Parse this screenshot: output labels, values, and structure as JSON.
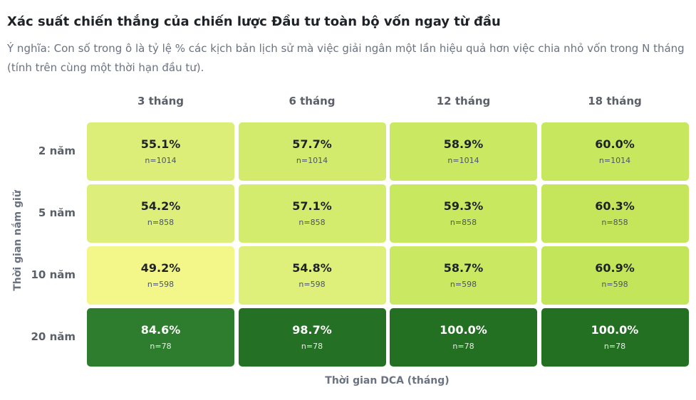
{
  "title": "Xác suất chiến thắng của chiến lược Đầu tư toàn bộ vốn ngay từ đầu",
  "subtitle": "Ý nghĩa: Con số trong ô là tỷ lệ % các kịch bản lịch sử mà việc giải ngân một lần hiệu quả hơn việc chia nhỏ vốn trong N tháng (tính trên cùng một thời hạn đầu tư).",
  "chart_data": {
    "type": "heatmap",
    "title": "Xác suất chiến thắng của chiến lược Đầu tư toàn bộ vốn ngay từ đầu",
    "xlabel": "Thời gian DCA (tháng)",
    "ylabel": "Thời gian nắm giữ",
    "columns": [
      "3 tháng",
      "6 tháng",
      "12 tháng",
      "18 tháng"
    ],
    "rows": [
      "2 năm",
      "5 năm",
      "10 năm",
      "20 năm"
    ],
    "values": [
      [
        55.1,
        57.7,
        58.9,
        60.0
      ],
      [
        54.2,
        57.1,
        59.3,
        60.3
      ],
      [
        49.2,
        54.8,
        58.7,
        60.9
      ],
      [
        84.6,
        98.7,
        100.0,
        100.0
      ]
    ],
    "labels": [
      [
        "55.1%",
        "57.7%",
        "58.9%",
        "60.0%"
      ],
      [
        "54.2%",
        "57.1%",
        "59.3%",
        "60.3%"
      ],
      [
        "49.2%",
        "54.8%",
        "58.7%",
        "60.9%"
      ],
      [
        "84.6%",
        "98.7%",
        "100.0%",
        "100.0%"
      ]
    ],
    "counts": [
      [
        "n=1014",
        "n=1014",
        "n=1014",
        "n=1014"
      ],
      [
        "n=858",
        "n=858",
        "n=858",
        "n=858"
      ],
      [
        "n=598",
        "n=598",
        "n=598",
        "n=598"
      ],
      [
        "n=78",
        "n=78",
        "n=78",
        "n=78"
      ]
    ],
    "colors": [
      [
        "#dcee78",
        "#d2eb6c",
        "#cae862",
        "#c7e75e"
      ],
      [
        "#ddef7a",
        "#d4ec6e",
        "#c8e85f",
        "#c5e65b"
      ],
      [
        "#f3f78a",
        "#deef7a",
        "#cae862",
        "#c3e55a"
      ],
      [
        "#2e7d2e",
        "#247024",
        "#237023",
        "#237023"
      ]
    ],
    "text_colors": [
      [
        "#1f2328",
        "#1f2328",
        "#1f2328",
        "#1f2328"
      ],
      [
        "#1f2328",
        "#1f2328",
        "#1f2328",
        "#1f2328"
      ],
      [
        "#1f2328",
        "#1f2328",
        "#1f2328",
        "#1f2328"
      ],
      [
        "#ffffff",
        "#ffffff",
        "#ffffff",
        "#ffffff"
      ]
    ],
    "n_colors": [
      [
        "#4b5563",
        "#4b5563",
        "#4b5563",
        "#4b5563"
      ],
      [
        "#4b5563",
        "#4b5563",
        "#4b5563",
        "#4b5563"
      ],
      [
        "#4b5563",
        "#4b5563",
        "#4b5563",
        "#4b5563"
      ],
      [
        "#e6f0e6",
        "#e6f0e6",
        "#e6f0e6",
        "#e6f0e6"
      ]
    ],
    "grid": false,
    "legend": "none"
  }
}
